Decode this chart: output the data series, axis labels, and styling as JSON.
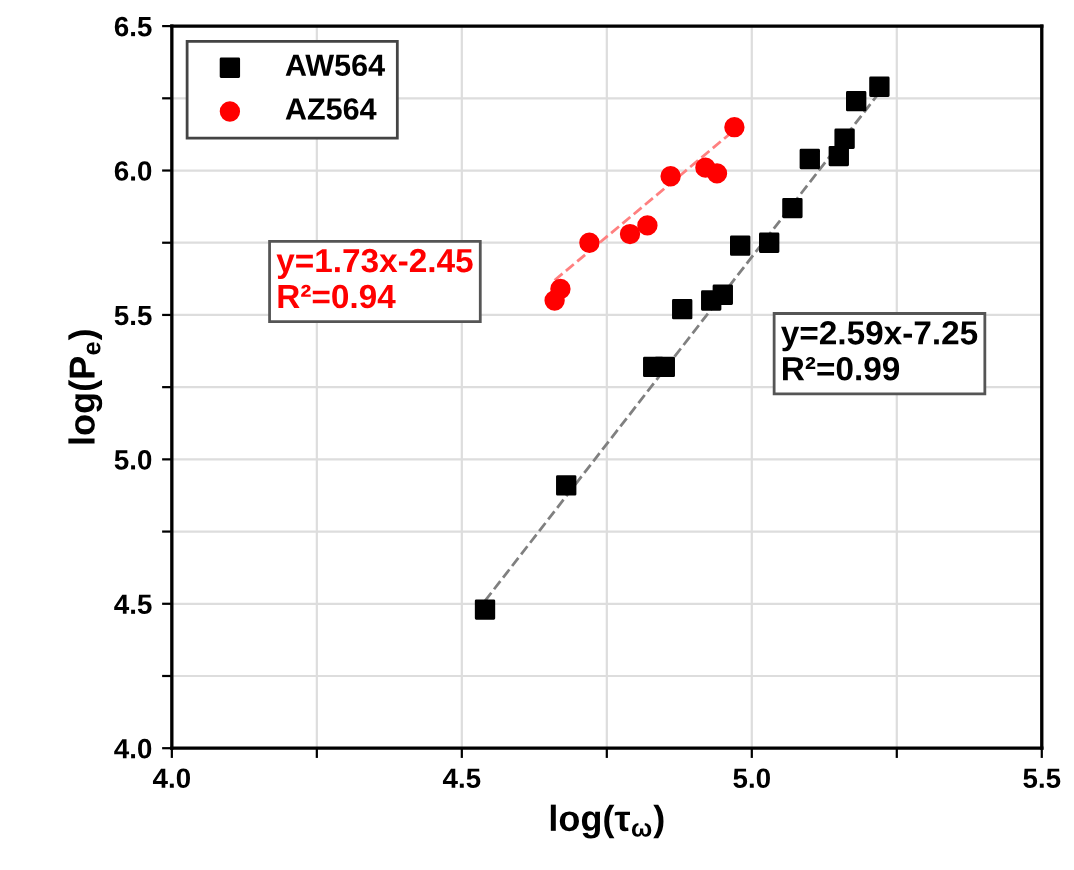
{
  "chart_data": {
    "type": "scatter",
    "xlabel": "log(τ$_{ω}$)",
    "ylabel": "log(P$_{e}$)",
    "xlim": [
      4.0,
      5.5
    ],
    "ylim": [
      4.0,
      6.5
    ],
    "xticks": [
      {
        "value": 4,
        "label": "4.0"
      },
      {
        "value": 4.25,
        "label": null
      },
      4.5,
      {
        "value": 4.75,
        "label": null
      },
      {
        "value": 5,
        "label": "5.0"
      },
      {
        "value": 5.25,
        "label": null
      },
      5.5
    ],
    "yticks": [
      {
        "value": 4,
        "label": "4.0"
      },
      {
        "value": 4.25,
        "label": null
      },
      4.5,
      {
        "value": 4.75,
        "label": null
      },
      {
        "value": 5,
        "label": "5.0"
      },
      {
        "value": 5.25,
        "label": null
      },
      5.5,
      {
        "value": 5.75,
        "label": null
      },
      {
        "value": 6,
        "label": "6.0"
      },
      {
        "value": 6.25,
        "label": null
      },
      6.5
    ],
    "grid": true,
    "legend": "top left",
    "series": [
      {
        "name": "AW564",
        "color": "#000000",
        "marker": "square",
        "x": [
          5.22,
          5.18,
          5.16,
          5.15,
          5.1,
          5.07,
          5.03,
          4.98,
          4.95,
          4.93,
          4.88,
          4.85,
          4.83,
          4.68,
          4.54
        ],
        "values": [
          6.29,
          6.24,
          6.11,
          6.05,
          6.04,
          5.87,
          5.75,
          5.74,
          5.57,
          5.55,
          5.52,
          5.32,
          5.32,
          4.91,
          4.48
        ]
      },
      {
        "name": "AZ564",
        "color": "#ff0000",
        "marker": "circle",
        "x": [
          4.97,
          4.94,
          4.92,
          4.86,
          4.82,
          4.79,
          4.72,
          4.67,
          4.66
        ],
        "values": [
          6.15,
          5.99,
          6.01,
          5.98,
          5.81,
          5.78,
          5.75,
          5.59,
          5.55
        ]
      },
      {
        "type": "line",
        "color": "#808080",
        "line_style": "dashed",
        "x": [
          4.54,
          5.22
        ],
        "values": [
          4.51,
          6.27
        ]
      },
      {
        "type": "line",
        "color": "#ff8080",
        "line_style": "dashed",
        "x": [
          4.66,
          4.97
        ],
        "values": [
          5.62,
          6.14
        ]
      }
    ],
    "annotations": [
      "y=2.59x-7.25\nR²=0.99",
      "y=1.73x-2.45\nR²=0.94"
    ]
  }
}
